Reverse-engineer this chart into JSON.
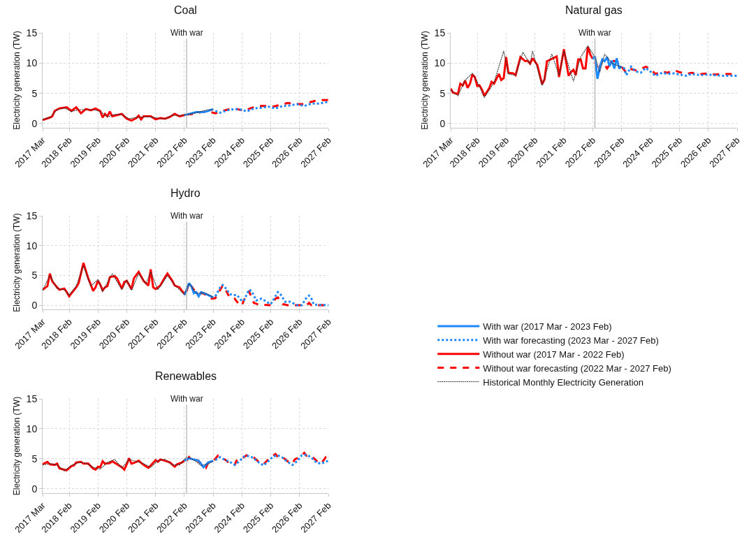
{
  "chart_data": [
    {
      "type": "line",
      "title": "Coal",
      "ylabel": "Electricity generation (TW)",
      "xlim": [
        "2017-03",
        "2027-02"
      ],
      "ylim": [
        -0.7,
        15
      ],
      "yticks": [
        0,
        5,
        10,
        15
      ],
      "xticks": [
        {
          "value": "2017-03",
          "label": "2017 Mar"
        },
        {
          "value": "2018-02",
          "label": "2018 Feb"
        },
        {
          "value": "2019-02",
          "label": "2019 Feb"
        },
        {
          "value": "2020-02",
          "label": "2020 Feb"
        },
        {
          "value": "2021-02",
          "label": "2021 Feb"
        },
        {
          "value": "2022-02",
          "label": "2022 Feb"
        },
        {
          "value": "2023-02",
          "label": "2023 Feb"
        },
        {
          "value": "2024-02",
          "label": "2024 Feb"
        },
        {
          "value": "2025-02",
          "label": "2025 Feb"
        },
        {
          "value": "2026-02",
          "label": "2026 Feb"
        },
        {
          "value": "2027-02",
          "label": "2027 Feb"
        }
      ],
      "grid": true,
      "legend": "right",
      "ref_lines": [
        {
          "axis": "x",
          "value": "2022-03",
          "label": "With war",
          "color": "#a0a0a0"
        }
      ],
      "series": [
        {
          "name": "With war (2017 Mar - 2023 Feb)",
          "color": "#1e88ff",
          "line_style": "solid",
          "x": [
            "2022-02",
            "2022-04",
            "2022-07",
            "2022-10",
            "2022-12",
            "2023-02"
          ],
          "values": [
            1.4,
            1.6,
            1.9,
            1.9,
            2.1,
            2.4
          ]
        },
        {
          "name": "With war forecasting (2023 Mar - 2027 Feb)",
          "color": "#1e88ff",
          "line_style": "dotted",
          "x": [
            "2023-03",
            "2023-05",
            "2023-08",
            "2023-11",
            "2024-02",
            "2024-04",
            "2024-07",
            "2024-10",
            "2025-01",
            "2025-04",
            "2025-07",
            "2025-10",
            "2026-01",
            "2026-04",
            "2026-07",
            "2026-10",
            "2027-02"
          ],
          "values": [
            2.1,
            1.8,
            2.2,
            2.4,
            2.3,
            2.0,
            2.5,
            2.6,
            2.8,
            2.5,
            2.9,
            3.0,
            3.2,
            2.9,
            3.3,
            3.3,
            3.6
          ]
        },
        {
          "name": "Without war (2017 Mar - 2022 Feb)",
          "color": "#ff0000",
          "line_style": "solid",
          "x": [
            "2017-03",
            "2017-06",
            "2017-07",
            "2017-08",
            "2017-10",
            "2018-01",
            "2018-03",
            "2018-05",
            "2018-07",
            "2018-09",
            "2018-11",
            "2019-01",
            "2019-03",
            "2019-04",
            "2019-05",
            "2019-06",
            "2019-07",
            "2019-08",
            "2019-10",
            "2019-12",
            "2020-02",
            "2020-04",
            "2020-06",
            "2020-07",
            "2020-08",
            "2020-09",
            "2020-12",
            "2021-02",
            "2021-04",
            "2021-06",
            "2021-08",
            "2021-10",
            "2021-12",
            "2022-02"
          ],
          "values": [
            0.6,
            1.0,
            1.2,
            2.1,
            2.5,
            2.7,
            2.1,
            2.7,
            1.7,
            2.4,
            2.2,
            2.5,
            2.1,
            1.0,
            1.6,
            1.2,
            2.0,
            1.2,
            1.4,
            1.6,
            0.8,
            0.5,
            0.9,
            1.3,
            0.7,
            1.2,
            1.2,
            0.7,
            0.9,
            0.8,
            1.1,
            1.6,
            1.2,
            1.4
          ]
        },
        {
          "name": "Without war forecasting (2022 Mar - 2027 Feb)",
          "color": "#ff0000",
          "line_style": "dashed",
          "x": [
            "2022-03",
            "2022-06",
            "2022-09",
            "2022-12",
            "2023-03",
            "2023-06",
            "2023-09",
            "2023-12",
            "2024-03",
            "2024-06",
            "2024-09",
            "2024-12",
            "2025-03",
            "2025-06",
            "2025-09",
            "2025-12",
            "2026-03",
            "2026-06",
            "2026-09",
            "2026-12",
            "2027-02"
          ],
          "values": [
            1.5,
            1.6,
            1.9,
            2.0,
            1.7,
            2.1,
            2.4,
            2.4,
            2.1,
            2.6,
            2.9,
            2.9,
            2.8,
            3.1,
            3.4,
            3.3,
            3.2,
            3.5,
            3.8,
            3.9,
            3.9
          ]
        },
        {
          "name": "Historical Monthly Electricity Generation",
          "color": "#333333",
          "line_style": "dotted",
          "x": [
            "2017-03",
            "2017-06",
            "2017-09",
            "2017-12",
            "2018-03",
            "2018-06",
            "2018-09",
            "2018-12",
            "2019-03",
            "2019-06",
            "2019-09",
            "2019-12",
            "2020-03",
            "2020-06",
            "2020-09",
            "2020-12",
            "2021-03",
            "2021-06",
            "2021-09",
            "2021-12",
            "2022-03",
            "2022-06",
            "2022-09",
            "2022-12",
            "2023-02"
          ],
          "values": [
            0.7,
            1.0,
            2.3,
            2.6,
            2.0,
            2.3,
            2.3,
            2.3,
            2.0,
            1.1,
            1.5,
            1.5,
            0.8,
            1.0,
            1.1,
            1.1,
            0.9,
            0.8,
            1.4,
            1.3,
            1.5,
            1.7,
            2.0,
            2.3,
            2.2
          ]
        }
      ]
    },
    {
      "type": "line",
      "title": "Natural gas",
      "ylabel": "Electricity generation (TW)",
      "xlim": [
        "2017-03",
        "2027-02"
      ],
      "ylim": [
        -0.7,
        15
      ],
      "yticks": [
        0,
        5,
        10,
        15
      ],
      "xticks": [
        {
          "value": "2017-03",
          "label": "2017 Mar"
        },
        {
          "value": "2018-02",
          "label": "2018 Feb"
        },
        {
          "value": "2019-02",
          "label": "2019 Feb"
        },
        {
          "value": "2020-02",
          "label": "2020 Feb"
        },
        {
          "value": "2021-02",
          "label": "2021 Feb"
        },
        {
          "value": "2022-02",
          "label": "2022 Feb"
        },
        {
          "value": "2023-02",
          "label": "2023 Feb"
        },
        {
          "value": "2024-02",
          "label": "2024 Feb"
        },
        {
          "value": "2025-02",
          "label": "2025 Feb"
        },
        {
          "value": "2026-02",
          "label": "2026 Feb"
        },
        {
          "value": "2027-02",
          "label": "2027 Feb"
        }
      ],
      "grid": true,
      "ref_lines": [
        {
          "axis": "x",
          "value": "2022-03",
          "label": "With war",
          "color": "#a0a0a0"
        }
      ],
      "series": [
        {
          "color": "#1e88ff",
          "line_style": "solid",
          "x": [
            "2022-02",
            "2022-03",
            "2022-04",
            "2022-05",
            "2022-06",
            "2022-07",
            "2022-08",
            "2022-09",
            "2022-10",
            "2022-11",
            "2022-12",
            "2023-01",
            "2023-02"
          ],
          "values": [
            10.7,
            11.1,
            7.4,
            9.3,
            10.6,
            10.3,
            11.0,
            9.5,
            10.4,
            9.1,
            10.8,
            9.1,
            9.5
          ]
        },
        {
          "color": "#1e88ff",
          "line_style": "dotted",
          "x": [
            "2023-03",
            "2023-04",
            "2023-06",
            "2023-08",
            "2023-10",
            "2023-12",
            "2024-02",
            "2024-04",
            "2024-07",
            "2024-09",
            "2024-12",
            "2025-02",
            "2025-05",
            "2025-07",
            "2025-11",
            "2026-02",
            "2026-05",
            "2026-08",
            "2027-02"
          ],
          "values": [
            9.3,
            8.0,
            9.4,
            8.6,
            8.4,
            9.2,
            8.6,
            7.9,
            8.4,
            8.2,
            8.3,
            8.1,
            7.9,
            8.2,
            8.0,
            8.1,
            8.0,
            7.9,
            7.9
          ]
        },
        {
          "color": "#ff0000",
          "line_style": "solid",
          "x": [
            "2017-03",
            "2017-04",
            "2017-06",
            "2017-07",
            "2017-08",
            "2017-09",
            "2017-10",
            "2017-11",
            "2017-12",
            "2018-01",
            "2018-02",
            "2018-03",
            "2018-04",
            "2018-05",
            "2018-07",
            "2018-08",
            "2018-09",
            "2018-11",
            "2018-12",
            "2019-01",
            "2019-02",
            "2019-03",
            "2019-05",
            "2019-06",
            "2019-08",
            "2019-10",
            "2019-11",
            "2019-12",
            "2020-01",
            "2020-03",
            "2020-05",
            "2020-06",
            "2020-07",
            "2020-09",
            "2020-11",
            "2020-12",
            "2021-02",
            "2021-04",
            "2021-05",
            "2021-06",
            "2021-07",
            "2021-08",
            "2021-09",
            "2021-10",
            "2021-11",
            "2021-12",
            "2022-01",
            "2022-02"
          ],
          "values": [
            5.8,
            5.1,
            4.9,
            6.6,
            6.3,
            7.1,
            5.9,
            6.6,
            8.1,
            7.7,
            6.2,
            6.3,
            5.6,
            4.6,
            5.8,
            6.9,
            6.6,
            8.2,
            7.2,
            7.5,
            11.0,
            8.4,
            8.3,
            8.0,
            11.0,
            10.3,
            10.4,
            9.9,
            10.8,
            9.7,
            6.5,
            7.3,
            10.3,
            10.7,
            11.1,
            7.7,
            12.3,
            7.9,
            8.5,
            8.9,
            8.0,
            10.6,
            10.6,
            9.1,
            9.1,
            12.7,
            11.4,
            10.7
          ]
        },
        {
          "color": "#ff0000",
          "line_style": "dashed",
          "x": [
            "2022-03",
            "2022-04",
            "2022-05",
            "2022-06",
            "2022-07",
            "2022-08",
            "2022-09",
            "2022-10",
            "2022-11",
            "2022-12",
            "2023-01",
            "2023-02",
            "2023-04",
            "2023-06",
            "2023-08",
            "2023-10",
            "2023-12",
            "2024-02",
            "2024-04",
            "2024-07",
            "2024-09",
            "2024-12",
            "2025-02",
            "2025-05",
            "2025-07",
            "2025-11",
            "2026-02",
            "2026-05",
            "2026-08",
            "2027-02"
          ],
          "values": [
            10.2,
            8.8,
            9.5,
            10.3,
            9.7,
            9.1,
            9.7,
            10.4,
            10.3,
            10.4,
            9.7,
            9.4,
            8.4,
            9.0,
            8.8,
            9.0,
            9.4,
            9.1,
            8.2,
            8.6,
            8.4,
            8.8,
            8.5,
            8.2,
            8.4,
            8.2,
            8.3,
            8.1,
            8.2,
            8.2
          ]
        },
        {
          "color": "#333333",
          "line_style": "dotted",
          "x": [
            "2017-03",
            "2017-06",
            "2017-09",
            "2017-12",
            "2018-03",
            "2018-05",
            "2018-09",
            "2019-01",
            "2019-03",
            "2019-06",
            "2019-09",
            "2019-12",
            "2020-01",
            "2020-05",
            "2020-09",
            "2020-12",
            "2021-02",
            "2021-06",
            "2021-09",
            "2021-12",
            "2022-03",
            "2022-05",
            "2022-07",
            "2022-10",
            "2023-02"
          ],
          "values": [
            5.5,
            4.6,
            7.2,
            8.3,
            6.2,
            4.3,
            6.8,
            12.0,
            8.2,
            8.0,
            11.8,
            9.8,
            12.0,
            6.3,
            11.5,
            8.0,
            12.0,
            7.0,
            11.0,
            12.8,
            11.0,
            8.5,
            11.5,
            10.0,
            9.3
          ]
        }
      ]
    },
    {
      "type": "line",
      "title": "Hydro",
      "ylabel": "Electricity generation (TW)",
      "xlim": [
        "2017-03",
        "2027-02"
      ],
      "ylim": [
        -0.7,
        15
      ],
      "yticks": [
        0,
        5,
        10,
        15
      ],
      "xticks": [
        {
          "value": "2017-03",
          "label": "2017 Mar"
        },
        {
          "value": "2018-02",
          "label": "2018 Feb"
        },
        {
          "value": "2019-02",
          "label": "2019 Feb"
        },
        {
          "value": "2020-02",
          "label": "2020 Feb"
        },
        {
          "value": "2021-02",
          "label": "2021 Feb"
        },
        {
          "value": "2022-02",
          "label": "2022 Feb"
        },
        {
          "value": "2023-02",
          "label": "2023 Feb"
        },
        {
          "value": "2024-02",
          "label": "2024 Feb"
        },
        {
          "value": "2025-02",
          "label": "2025 Feb"
        },
        {
          "value": "2026-02",
          "label": "2026 Feb"
        },
        {
          "value": "2027-02",
          "label": "2027 Feb"
        }
      ],
      "grid": true,
      "ref_lines": [
        {
          "axis": "x",
          "value": "2022-03",
          "label": "With war",
          "color": "#a0a0a0"
        }
      ],
      "series": [
        {
          "color": "#1e88ff",
          "line_style": "solid",
          "x": [
            "2022-02",
            "2022-04",
            "2022-05",
            "2022-06",
            "2022-07",
            "2022-08",
            "2022-09",
            "2022-11",
            "2023-02"
          ],
          "values": [
            1.7,
            3.7,
            3.2,
            2.0,
            2.2,
            1.5,
            2.2,
            1.9,
            1.3
          ]
        },
        {
          "color": "#1e88ff",
          "line_style": "dotted",
          "x": [
            "2023-03",
            "2023-05",
            "2023-06",
            "2023-07",
            "2023-09",
            "2023-10",
            "2023-12",
            "2024-02",
            "2024-03",
            "2024-05",
            "2024-06",
            "2024-08",
            "2024-10",
            "2024-11",
            "2025-01",
            "2025-02",
            "2025-05",
            "2025-06",
            "2025-08",
            "2025-10",
            "2025-11",
            "2026-01",
            "2026-03",
            "2026-05",
            "2026-06",
            "2026-07",
            "2026-08",
            "2027-02"
          ],
          "values": [
            1.5,
            3.0,
            3.4,
            3.0,
            1.9,
            1.7,
            1.7,
            0.7,
            0.9,
            2.6,
            2.4,
            0.8,
            1.1,
            0.9,
            0.4,
            0.2,
            2.2,
            1.9,
            0.6,
            0.6,
            0.4,
            0,
            0,
            1.3,
            1.6,
            1.1,
            0.1,
            0
          ]
        },
        {
          "color": "#ff0000",
          "line_style": "solid",
          "x": [
            "2017-03",
            "2017-05",
            "2017-06",
            "2017-07",
            "2017-09",
            "2017-10",
            "2017-12",
            "2018-01",
            "2018-02",
            "2018-03",
            "2018-05",
            "2018-06",
            "2018-08",
            "2018-10",
            "2018-11",
            "2018-12",
            "2019-01",
            "2019-02",
            "2019-03",
            "2019-04",
            "2019-05",
            "2019-06",
            "2019-07",
            "2019-09",
            "2019-10",
            "2019-12",
            "2020-01",
            "2020-02",
            "2020-04",
            "2020-05",
            "2020-07",
            "2020-09",
            "2020-11",
            "2020-12",
            "2021-01",
            "2021-02",
            "2021-04",
            "2021-06",
            "2021-07",
            "2021-09",
            "2021-10",
            "2021-12",
            "2022-01",
            "2022-02"
          ],
          "values": [
            2.6,
            3.2,
            5.3,
            4.0,
            3.0,
            2.6,
            2.8,
            2.2,
            1.5,
            2.0,
            3.0,
            3.7,
            7.1,
            4.5,
            3.5,
            2.4,
            3.0,
            4.1,
            3.5,
            2.5,
            3.0,
            3.2,
            4.7,
            4.9,
            4.5,
            2.8,
            3.9,
            4.1,
            2.7,
            4.5,
            5.6,
            4.1,
            3.3,
            6.0,
            3.0,
            2.7,
            3.3,
            4.7,
            5.3,
            4.1,
            3.3,
            3.0,
            2.4,
            1.9
          ]
        },
        {
          "color": "#ff0000",
          "line_style": "dashed",
          "x": [
            "2022-03",
            "2022-04",
            "2022-06",
            "2022-08",
            "2022-10",
            "2023-01",
            "2023-03",
            "2023-06",
            "2023-07",
            "2023-09",
            "2023-11",
            "2024-01",
            "2024-02",
            "2024-04",
            "2024-05",
            "2024-07",
            "2024-09",
            "2025-02",
            "2025-04",
            "2025-05",
            "2025-07",
            "2025-09",
            "2026-05",
            "2026-06",
            "2026-07",
            "2027-02"
          ],
          "values": [
            2.3,
            3.8,
            2.6,
            2.0,
            2.0,
            1.1,
            1.2,
            3.3,
            2.8,
            1.2,
            1.1,
            0,
            0,
            2.0,
            2.3,
            0.4,
            0.1,
            0,
            1.1,
            1.3,
            0.2,
            0,
            0,
            0.4,
            0,
            0
          ]
        },
        {
          "color": "#333333",
          "line_style": "dotted",
          "x": [
            "2017-03",
            "2017-06",
            "2017-09",
            "2017-12",
            "2018-02",
            "2018-05",
            "2018-08",
            "2018-11",
            "2019-02",
            "2019-04",
            "2019-08",
            "2019-12",
            "2020-02",
            "2020-04",
            "2020-07",
            "2020-10",
            "2020-12",
            "2021-03",
            "2021-07",
            "2021-10",
            "2022-02",
            "2022-04",
            "2022-07",
            "2022-10",
            "2023-02"
          ],
          "values": [
            2.5,
            5.0,
            2.8,
            2.6,
            1.7,
            3.2,
            6.6,
            3.2,
            4.3,
            2.3,
            5.3,
            2.6,
            4.2,
            2.5,
            5.3,
            3.6,
            5.6,
            2.6,
            5.0,
            3.4,
            1.8,
            3.6,
            2.0,
            2.1,
            1.4
          ]
        }
      ]
    },
    {
      "type": "line",
      "title": "Renewables",
      "ylabel": "Electricity generation (TW)",
      "xlim": [
        "2017-03",
        "2027-02"
      ],
      "ylim": [
        -0.7,
        15
      ],
      "yticks": [
        0,
        5,
        10,
        15
      ],
      "xticks": [
        {
          "value": "2017-03",
          "label": "2017 Mar"
        },
        {
          "value": "2018-02",
          "label": "2018 Feb"
        },
        {
          "value": "2019-02",
          "label": "2019 Feb"
        },
        {
          "value": "2020-02",
          "label": "2020 Feb"
        },
        {
          "value": "2021-02",
          "label": "2021 Feb"
        },
        {
          "value": "2022-02",
          "label": "2022 Feb"
        },
        {
          "value": "2023-02",
          "label": "2023 Feb"
        },
        {
          "value": "2024-02",
          "label": "2024 Feb"
        },
        {
          "value": "2025-02",
          "label": "2025 Feb"
        },
        {
          "value": "2026-02",
          "label": "2026 Feb"
        },
        {
          "value": "2027-02",
          "label": "2027 Feb"
        }
      ],
      "grid": true,
      "ref_lines": [
        {
          "axis": "x",
          "value": "2022-03",
          "label": "With war",
          "color": "#a0a0a0"
        }
      ],
      "series": [
        {
          "color": "#1e88ff",
          "line_style": "solid",
          "x": [
            "2022-02",
            "2022-04",
            "2022-06",
            "2022-08",
            "2022-10",
            "2022-12",
            "2023-02"
          ],
          "values": [
            4.7,
            5.1,
            4.9,
            4.7,
            3.6,
            4.4,
            4.7
          ]
        },
        {
          "color": "#1e88ff",
          "line_style": "dotted",
          "x": [
            "2023-03",
            "2023-05",
            "2023-07",
            "2023-09",
            "2023-11",
            "2024-01",
            "2024-03",
            "2024-05",
            "2024-07",
            "2024-09",
            "2024-11",
            "2025-01",
            "2025-03",
            "2025-05",
            "2025-07",
            "2025-09",
            "2025-11",
            "2026-01",
            "2026-03",
            "2026-05",
            "2026-07",
            "2026-09",
            "2026-11",
            "2027-02"
          ],
          "values": [
            4.8,
            5.3,
            4.8,
            4.5,
            4.0,
            4.6,
            5.4,
            5.5,
            5.1,
            4.4,
            3.9,
            4.6,
            5.4,
            5.6,
            5.2,
            4.5,
            4.0,
            4.6,
            5.6,
            5.7,
            5.2,
            4.4,
            4.2,
            4.7
          ]
        },
        {
          "color": "#ff0000",
          "line_style": "solid",
          "x": [
            "2017-03",
            "2017-05",
            "2017-06",
            "2017-08",
            "2017-09",
            "2017-10",
            "2017-12",
            "2018-01",
            "2018-03",
            "2018-04",
            "2018-05",
            "2018-07",
            "2018-08",
            "2018-10",
            "2018-12",
            "2019-01",
            "2019-02",
            "2019-03",
            "2019-04",
            "2019-05",
            "2019-07",
            "2019-08",
            "2019-10",
            "2019-12",
            "2020-01",
            "2020-02",
            "2020-03",
            "2020-04",
            "2020-06",
            "2020-07",
            "2020-09",
            "2020-11",
            "2020-12",
            "2021-02",
            "2021-03",
            "2021-04",
            "2021-06",
            "2021-08",
            "2021-10",
            "2021-11",
            "2022-01",
            "2022-02"
          ],
          "values": [
            4.1,
            4.5,
            4.1,
            4.0,
            4.2,
            3.4,
            3.2,
            3.1,
            3.8,
            3.9,
            4.4,
            4.5,
            4.2,
            4.2,
            3.4,
            3.2,
            3.7,
            3.6,
            4.6,
            4.2,
            4.3,
            4.6,
            4.1,
            3.6,
            3.2,
            4.1,
            5.1,
            4.2,
            4.5,
            4.7,
            4.0,
            3.5,
            3.9,
            4.8,
            4.5,
            4.9,
            4.7,
            4.4,
            3.7,
            4.1,
            4.4,
            4.7
          ]
        },
        {
          "color": "#ff0000",
          "line_style": "dashed",
          "x": [
            "2022-03",
            "2022-04",
            "2022-05",
            "2022-07",
            "2022-09",
            "2022-11",
            "2022-12",
            "2023-02",
            "2023-04",
            "2023-05",
            "2023-07",
            "2023-09",
            "2023-11",
            "2023-12",
            "2024-02",
            "2024-04",
            "2024-05",
            "2024-07",
            "2024-09",
            "2024-11",
            "2024-12",
            "2025-02",
            "2025-04",
            "2025-05",
            "2025-07",
            "2025-09",
            "2025-11",
            "2025-12",
            "2026-02",
            "2026-04",
            "2026-05",
            "2026-07",
            "2026-09",
            "2026-11",
            "2027-01",
            "2027-02"
          ],
          "values": [
            4.7,
            5.3,
            4.9,
            4.9,
            4.2,
            3.5,
            4.4,
            4.6,
            5.5,
            5.0,
            4.9,
            4.2,
            4.0,
            4.9,
            5.1,
            5.6,
            5.2,
            5.2,
            4.5,
            4.1,
            4.5,
            5.3,
            5.8,
            5.3,
            5.3,
            4.6,
            4.2,
            4.9,
            5.3,
            6.0,
            5.5,
            5.5,
            4.7,
            4.2,
            5.3,
            5.2
          ]
        },
        {
          "color": "#333333",
          "line_style": "dotted",
          "x": [
            "2017-03",
            "2017-06",
            "2017-09",
            "2017-12",
            "2018-03",
            "2018-06",
            "2018-09",
            "2018-12",
            "2019-03",
            "2019-06",
            "2019-09",
            "2019-12",
            "2020-03",
            "2020-06",
            "2020-09",
            "2020-12",
            "2021-03",
            "2021-06",
            "2021-09",
            "2021-12",
            "2022-03",
            "2022-06",
            "2022-09",
            "2022-12",
            "2023-02"
          ],
          "values": [
            4.0,
            4.2,
            4.0,
            3.0,
            3.9,
            4.4,
            4.3,
            3.6,
            3.3,
            4.4,
            4.9,
            3.5,
            4.9,
            4.6,
            4.2,
            3.6,
            4.7,
            4.9,
            4.0,
            4.0,
            5.3,
            4.8,
            3.9,
            4.2,
            4.6
          ]
        }
      ]
    }
  ]
}
